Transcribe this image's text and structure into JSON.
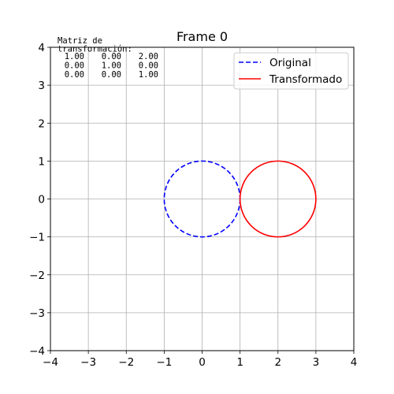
{
  "chart_data": {
    "type": "line",
    "title": "Frame 0",
    "xlabel": "",
    "ylabel": "",
    "xlim": [
      -4,
      4
    ],
    "ylim": [
      -4,
      4
    ],
    "grid": true,
    "xticks": [
      -4,
      -3,
      -2,
      -1,
      0,
      1,
      2,
      3,
      4
    ],
    "yticks": [
      -4,
      -3,
      -2,
      -1,
      0,
      1,
      2,
      3,
      4
    ],
    "xtick_labels": [
      "−4",
      "−3",
      "−2",
      "−1",
      "0",
      "1",
      "2",
      "3",
      "4"
    ],
    "ytick_labels": [
      "−4",
      "−3",
      "−2",
      "−1",
      "0",
      "1",
      "2",
      "3",
      "4"
    ],
    "legend_position": "upper right",
    "series": [
      {
        "name": "Original",
        "shape": "circle",
        "center": [
          0,
          0
        ],
        "radius": 1,
        "color": "#0000ff",
        "linestyle": "dashed"
      },
      {
        "name": "Transformado",
        "shape": "circle",
        "center": [
          2,
          0
        ],
        "radius": 1,
        "color": "#ff0000",
        "linestyle": "solid"
      }
    ],
    "annotation": {
      "label_lines": [
        "Matriz de",
        "transformación:"
      ],
      "matrix": [
        [
          "1.00",
          "0.00",
          "2.00"
        ],
        [
          "0.00",
          "1.00",
          "0.00"
        ],
        [
          "0.00",
          "0.00",
          "1.00"
        ]
      ]
    }
  }
}
